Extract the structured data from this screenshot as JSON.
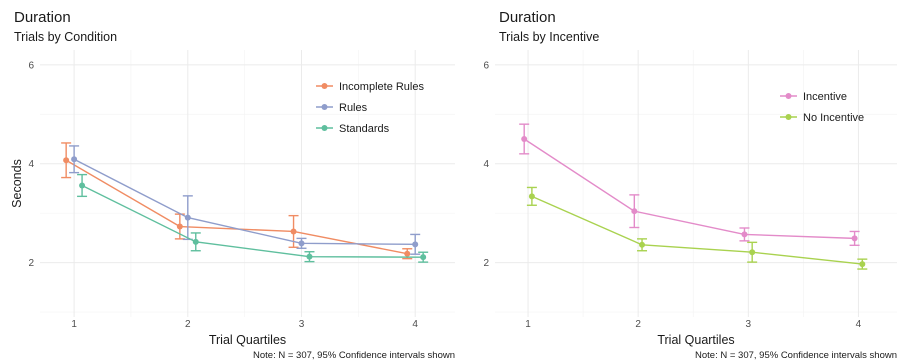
{
  "chart_data": [
    {
      "type": "line",
      "title": "Duration",
      "subtitle": "Trials by Condition",
      "xlabel": "Trial Quartiles",
      "ylabel": "Seconds",
      "note": "Note: N = 307, 95% Confidence intervals shown",
      "x_ticks": [
        "1",
        "2",
        "3",
        "4"
      ],
      "y_ticks": [
        "2",
        "4",
        "6"
      ],
      "ylim": [
        0.9,
        6.3
      ],
      "grid": true,
      "legend_position": "top-right",
      "series": [
        {
          "name": "Incomplete Rules",
          "color": "#F08C63",
          "points": [
            {
              "x": 1,
              "y": 4.07,
              "lo": 3.72,
              "hi": 4.42
            },
            {
              "x": 2,
              "y": 2.73,
              "lo": 2.48,
              "hi": 2.98
            },
            {
              "x": 3,
              "y": 2.63,
              "lo": 2.31,
              "hi": 2.95
            },
            {
              "x": 4,
              "y": 2.18,
              "lo": 2.08,
              "hi": 2.28
            }
          ]
        },
        {
          "name": "Rules",
          "color": "#8F9DCB",
          "points": [
            {
              "x": 1,
              "y": 4.09,
              "lo": 3.82,
              "hi": 4.36
            },
            {
              "x": 2,
              "y": 2.91,
              "lo": 2.47,
              "hi": 3.35
            },
            {
              "x": 3,
              "y": 2.39,
              "lo": 2.29,
              "hi": 2.49
            },
            {
              "x": 4,
              "y": 2.37,
              "lo": 2.17,
              "hi": 2.57
            }
          ]
        },
        {
          "name": "Standards",
          "color": "#5FBF9E",
          "points": [
            {
              "x": 1,
              "y": 3.56,
              "lo": 3.34,
              "hi": 3.78
            },
            {
              "x": 2,
              "y": 2.42,
              "lo": 2.24,
              "hi": 2.6
            },
            {
              "x": 3,
              "y": 2.12,
              "lo": 2.02,
              "hi": 2.22
            },
            {
              "x": 4,
              "y": 2.11,
              "lo": 2.01,
              "hi": 2.21
            }
          ]
        }
      ]
    },
    {
      "type": "line",
      "title": "Duration",
      "subtitle": "Trials by Incentive",
      "xlabel": "Trial Quartiles",
      "ylabel": "",
      "note": "Note: N = 307, 95% Confidence intervals shown",
      "x_ticks": [
        "1",
        "2",
        "3",
        "4"
      ],
      "y_ticks": [
        "2",
        "4",
        "6"
      ],
      "ylim": [
        0.9,
        6.3
      ],
      "grid": true,
      "legend_position": "top-right",
      "series": [
        {
          "name": "Incentive",
          "color": "#E38BC9",
          "points": [
            {
              "x": 1,
              "y": 4.5,
              "lo": 4.2,
              "hi": 4.8
            },
            {
              "x": 2,
              "y": 3.04,
              "lo": 2.71,
              "hi": 3.37
            },
            {
              "x": 3,
              "y": 2.57,
              "lo": 2.44,
              "hi": 2.7
            },
            {
              "x": 4,
              "y": 2.49,
              "lo": 2.35,
              "hi": 2.63
            }
          ]
        },
        {
          "name": "No Incentive",
          "color": "#A9D24F",
          "points": [
            {
              "x": 1,
              "y": 3.34,
              "lo": 3.16,
              "hi": 3.52
            },
            {
              "x": 2,
              "y": 2.36,
              "lo": 2.24,
              "hi": 2.48
            },
            {
              "x": 3,
              "y": 2.21,
              "lo": 2.01,
              "hi": 2.41
            },
            {
              "x": 4,
              "y": 1.97,
              "lo": 1.87,
              "hi": 2.07
            }
          ]
        }
      ]
    }
  ]
}
